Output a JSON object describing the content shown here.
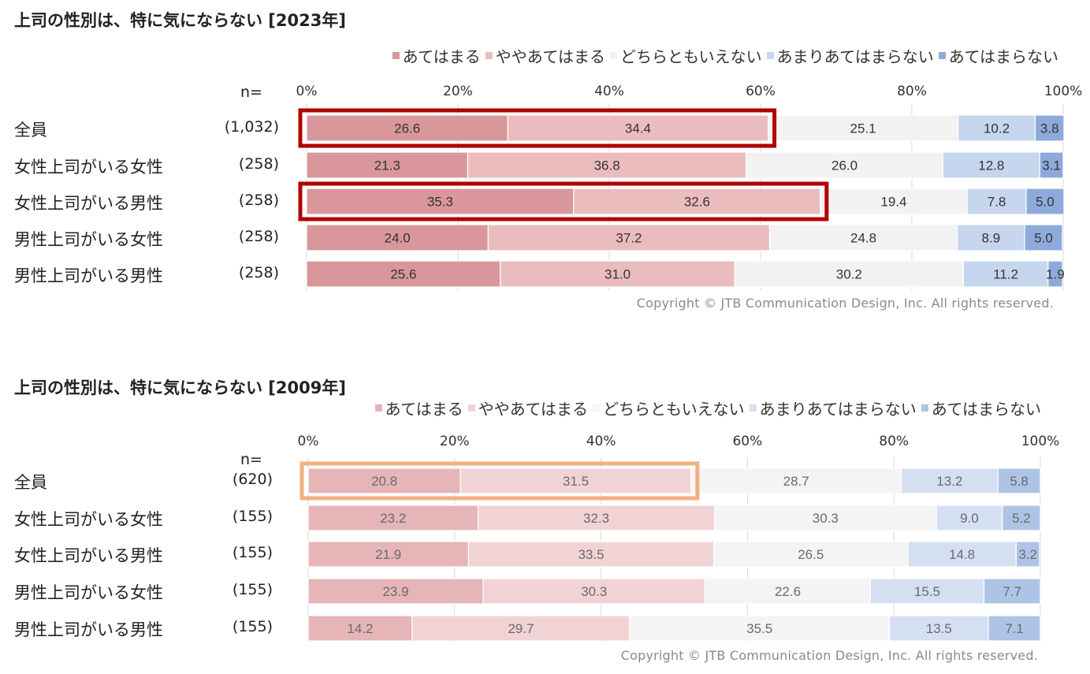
{
  "legend_labels": [
    "あてはまる",
    "ややあてはまる",
    "どちらともいえない",
    "あまりあてはまらない",
    "あてはまらない"
  ],
  "n_prefix": "n=",
  "copyright": "Copyright © JTB Communication Design, Inc. All rights reserved.",
  "chart_data": [
    {
      "type": "bar",
      "stacked": "horizontal-100%",
      "title": "上司の性別は、特に気にならない [2023年]",
      "categories": [
        "全員",
        "女性上司がいる女性",
        "女性上司がいる男性",
        "男性上司がいる女性",
        "男性上司がいる男性"
      ],
      "n": [
        "(1,032)",
        "(258)",
        "(258)",
        "(258)",
        "(258)"
      ],
      "series": [
        {
          "name": "あてはまる",
          "color": "#d9979b",
          "values": [
            26.6,
            21.3,
            35.3,
            24.0,
            25.6
          ]
        },
        {
          "name": "ややあてはまる",
          "color": "#ebbcbe",
          "values": [
            34.4,
            36.8,
            32.6,
            37.2,
            31.0
          ]
        },
        {
          "name": "どちらともいえない",
          "color": "#f2f2f2",
          "values": [
            25.1,
            26.0,
            19.4,
            24.8,
            30.2
          ]
        },
        {
          "name": "あまりあてはまらない",
          "color": "#c6d6ee",
          "values": [
            10.2,
            12.8,
            7.8,
            8.9,
            11.2
          ]
        },
        {
          "name": "あてはまらない",
          "color": "#8eaadb",
          "values": [
            3.8,
            3.1,
            5.0,
            5.0,
            1.9
          ]
        }
      ],
      "xticks": [
        "0%",
        "20%",
        "40%",
        "60%",
        "80%",
        "100%"
      ],
      "xlim": [
        0,
        100
      ],
      "highlights": [
        {
          "row": 0,
          "span": [
            0,
            61.0
          ],
          "color": "#b00000"
        },
        {
          "row": 2,
          "span": [
            0,
            67.9
          ],
          "color": "#b00000"
        }
      ]
    },
    {
      "type": "bar",
      "stacked": "horizontal-100%",
      "title": "上司の性別は、特に気にならない [2009年]",
      "categories": [
        "全員",
        "女性上司がいる女性",
        "女性上司がいる男性",
        "男性上司がいる女性",
        "男性上司がいる男性"
      ],
      "n": [
        "(620)",
        "(155)",
        "(155)",
        "(155)",
        "(155)"
      ],
      "series": [
        {
          "name": "あてはまる",
          "color": "#e6b5b8",
          "values": [
            20.8,
            23.2,
            21.9,
            23.9,
            14.2
          ]
        },
        {
          "name": "ややあてはまる",
          "color": "#f2d3d5",
          "values": [
            31.5,
            32.3,
            33.5,
            30.3,
            29.7
          ]
        },
        {
          "name": "どちらともいえない",
          "color": "#f4f4f4",
          "values": [
            28.7,
            30.3,
            26.5,
            22.6,
            35.5
          ]
        },
        {
          "name": "あまりあてはまらない",
          "color": "#d4e0f2",
          "values": [
            13.2,
            9.0,
            14.8,
            15.5,
            13.5
          ]
        },
        {
          "name": "あてはまらない",
          "color": "#aec4e6",
          "values": [
            5.8,
            5.2,
            3.2,
            7.7,
            7.1
          ]
        }
      ],
      "xticks": [
        "0%",
        "20%",
        "40%",
        "60%",
        "80%",
        "100%"
      ],
      "xlim": [
        0,
        100
      ],
      "highlights": [
        {
          "row": 0,
          "span": [
            0,
            52.3
          ],
          "color": "#f0b080"
        }
      ]
    }
  ]
}
